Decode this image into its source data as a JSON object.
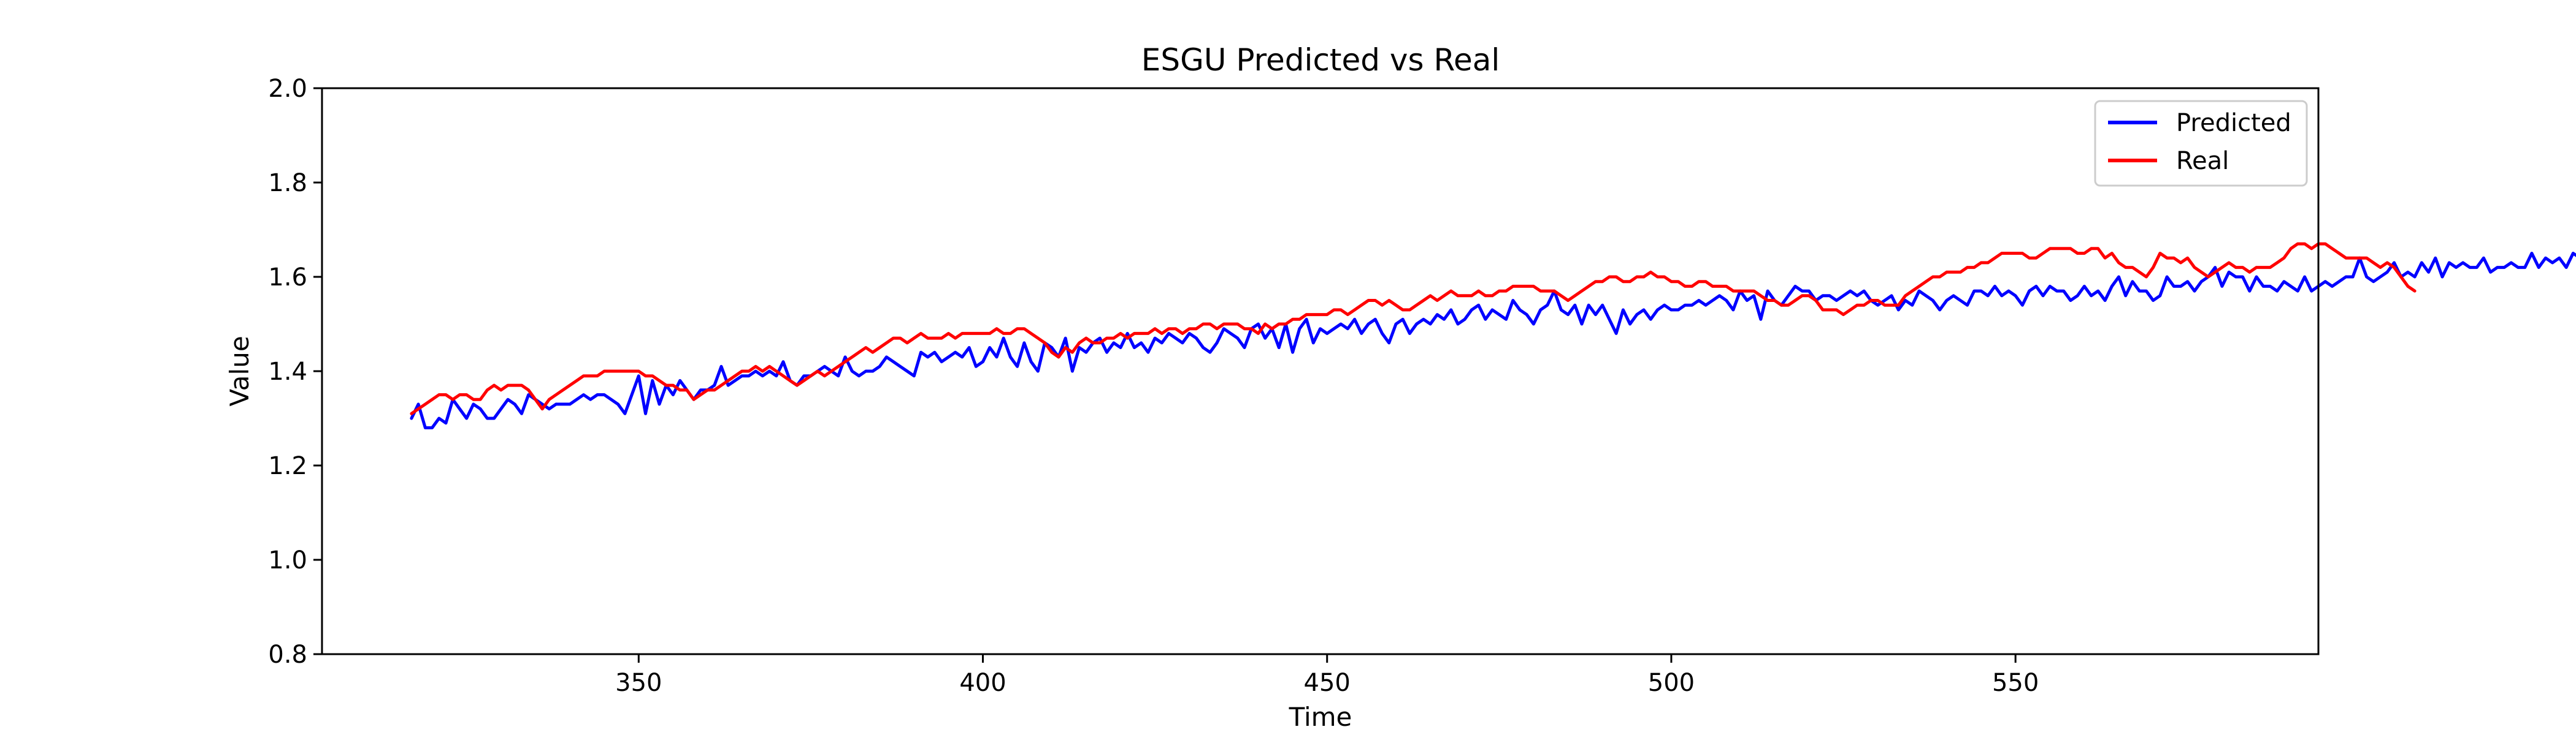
{
  "chart_data": {
    "type": "line",
    "title": "ESGU Predicted vs Real",
    "xlabel": "Time",
    "ylabel": "Value",
    "xlim": [
      304,
      594
    ],
    "ylim": [
      0.8,
      2.0
    ],
    "x_ticks": [
      350,
      400,
      450,
      500,
      550
    ],
    "y_ticks": [
      0.8,
      1.0,
      1.2,
      1.4,
      1.6,
      1.8,
      2.0
    ],
    "x_tick_labels": [
      "350",
      "400",
      "450",
      "500",
      "550"
    ],
    "y_tick_labels": [
      "0.8",
      "1.0",
      "1.2",
      "1.4",
      "1.6",
      "1.8",
      "2.0"
    ],
    "grid": false,
    "legend_position": "top-right",
    "x_start": 317,
    "x_step": 1,
    "series": [
      {
        "name": "Predicted",
        "color": "#0000ff",
        "values": [
          1.3,
          1.33,
          1.28,
          1.28,
          1.3,
          1.29,
          1.34,
          1.32,
          1.3,
          1.33,
          1.32,
          1.3,
          1.3,
          1.32,
          1.34,
          1.33,
          1.31,
          1.35,
          1.34,
          1.33,
          1.32,
          1.33,
          1.33,
          1.33,
          1.34,
          1.35,
          1.34,
          1.35,
          1.35,
          1.34,
          1.33,
          1.31,
          1.35,
          1.39,
          1.31,
          1.38,
          1.33,
          1.37,
          1.35,
          1.38,
          1.36,
          1.34,
          1.36,
          1.36,
          1.37,
          1.41,
          1.37,
          1.38,
          1.39,
          1.39,
          1.4,
          1.39,
          1.4,
          1.39,
          1.42,
          1.38,
          1.37,
          1.39,
          1.39,
          1.4,
          1.41,
          1.4,
          1.39,
          1.43,
          1.4,
          1.39,
          1.4,
          1.4,
          1.41,
          1.43,
          1.42,
          1.41,
          1.4,
          1.39,
          1.44,
          1.43,
          1.44,
          1.42,
          1.43,
          1.44,
          1.43,
          1.45,
          1.41,
          1.42,
          1.45,
          1.43,
          1.47,
          1.43,
          1.41,
          1.46,
          1.42,
          1.4,
          1.46,
          1.45,
          1.43,
          1.47,
          1.4,
          1.45,
          1.44,
          1.46,
          1.47,
          1.44,
          1.46,
          1.45,
          1.48,
          1.45,
          1.46,
          1.44,
          1.47,
          1.46,
          1.48,
          1.47,
          1.46,
          1.48,
          1.47,
          1.45,
          1.44,
          1.46,
          1.49,
          1.48,
          1.47,
          1.45,
          1.49,
          1.5,
          1.47,
          1.49,
          1.45,
          1.5,
          1.44,
          1.49,
          1.51,
          1.46,
          1.49,
          1.48,
          1.49,
          1.5,
          1.49,
          1.51,
          1.48,
          1.5,
          1.51,
          1.48,
          1.46,
          1.5,
          1.51,
          1.48,
          1.5,
          1.51,
          1.5,
          1.52,
          1.51,
          1.53,
          1.5,
          1.51,
          1.53,
          1.54,
          1.51,
          1.53,
          1.52,
          1.51,
          1.55,
          1.53,
          1.52,
          1.5,
          1.53,
          1.54,
          1.57,
          1.53,
          1.52,
          1.54,
          1.5,
          1.54,
          1.52,
          1.54,
          1.51,
          1.48,
          1.53,
          1.5,
          1.52,
          1.53,
          1.51,
          1.53,
          1.54,
          1.53,
          1.53,
          1.54,
          1.54,
          1.55,
          1.54,
          1.55,
          1.56,
          1.55,
          1.53,
          1.57,
          1.55,
          1.56,
          1.51,
          1.57,
          1.55,
          1.54,
          1.56,
          1.58,
          1.57,
          1.57,
          1.55,
          1.56,
          1.56,
          1.55,
          1.56,
          1.57,
          1.56,
          1.57,
          1.55,
          1.54,
          1.55,
          1.56,
          1.53,
          1.55,
          1.54,
          1.57,
          1.56,
          1.55,
          1.53,
          1.55,
          1.56,
          1.55,
          1.54,
          1.57,
          1.57,
          1.56,
          1.58,
          1.56,
          1.57,
          1.56,
          1.54,
          1.57,
          1.58,
          1.56,
          1.58,
          1.57,
          1.57,
          1.55,
          1.56,
          1.58,
          1.56,
          1.57,
          1.55,
          1.58,
          1.6,
          1.56,
          1.59,
          1.57,
          1.57,
          1.55,
          1.56,
          1.6,
          1.58,
          1.58,
          1.59,
          1.57,
          1.59,
          1.6,
          1.62,
          1.58,
          1.61,
          1.6,
          1.6,
          1.57,
          1.6,
          1.58,
          1.58,
          1.57,
          1.59,
          1.58,
          1.57,
          1.6,
          1.57,
          1.58,
          1.59,
          1.58,
          1.59,
          1.6,
          1.6,
          1.64,
          1.6,
          1.59,
          1.6,
          1.61,
          1.63,
          1.6,
          1.61,
          1.6,
          1.63,
          1.61,
          1.64,
          1.6,
          1.63,
          1.62,
          1.63,
          1.62,
          1.62,
          1.64,
          1.61,
          1.62,
          1.62,
          1.63,
          1.62,
          1.62,
          1.65,
          1.62,
          1.64,
          1.63,
          1.64,
          1.62,
          1.65,
          1.64,
          1.63,
          1.64,
          1.62,
          1.63,
          1.63,
          1.64,
          1.65,
          1.63,
          1.64,
          1.66
        ]
      },
      {
        "name": "Real",
        "color": "#ff0000",
        "values": [
          1.31,
          1.32,
          1.33,
          1.34,
          1.35,
          1.35,
          1.34,
          1.35,
          1.35,
          1.34,
          1.34,
          1.36,
          1.37,
          1.36,
          1.37,
          1.37,
          1.37,
          1.36,
          1.34,
          1.32,
          1.34,
          1.35,
          1.36,
          1.37,
          1.38,
          1.39,
          1.39,
          1.39,
          1.4,
          1.4,
          1.4,
          1.4,
          1.4,
          1.4,
          1.39,
          1.39,
          1.38,
          1.37,
          1.37,
          1.36,
          1.36,
          1.34,
          1.35,
          1.36,
          1.36,
          1.37,
          1.38,
          1.39,
          1.4,
          1.4,
          1.41,
          1.4,
          1.41,
          1.4,
          1.39,
          1.38,
          1.37,
          1.38,
          1.39,
          1.4,
          1.39,
          1.4,
          1.41,
          1.42,
          1.43,
          1.44,
          1.45,
          1.44,
          1.45,
          1.46,
          1.47,
          1.47,
          1.46,
          1.47,
          1.48,
          1.47,
          1.47,
          1.47,
          1.48,
          1.47,
          1.48,
          1.48,
          1.48,
          1.48,
          1.48,
          1.49,
          1.48,
          1.48,
          1.49,
          1.49,
          1.48,
          1.47,
          1.46,
          1.44,
          1.43,
          1.45,
          1.44,
          1.46,
          1.47,
          1.46,
          1.46,
          1.47,
          1.47,
          1.48,
          1.47,
          1.48,
          1.48,
          1.48,
          1.49,
          1.48,
          1.49,
          1.49,
          1.48,
          1.49,
          1.49,
          1.5,
          1.5,
          1.49,
          1.5,
          1.5,
          1.5,
          1.49,
          1.49,
          1.48,
          1.5,
          1.49,
          1.5,
          1.5,
          1.51,
          1.51,
          1.52,
          1.52,
          1.52,
          1.52,
          1.53,
          1.53,
          1.52,
          1.53,
          1.54,
          1.55,
          1.55,
          1.54,
          1.55,
          1.54,
          1.53,
          1.53,
          1.54,
          1.55,
          1.56,
          1.55,
          1.56,
          1.57,
          1.56,
          1.56,
          1.56,
          1.57,
          1.56,
          1.56,
          1.57,
          1.57,
          1.58,
          1.58,
          1.58,
          1.58,
          1.57,
          1.57,
          1.57,
          1.56,
          1.55,
          1.56,
          1.57,
          1.58,
          1.59,
          1.59,
          1.6,
          1.6,
          1.59,
          1.59,
          1.6,
          1.6,
          1.61,
          1.6,
          1.6,
          1.59,
          1.59,
          1.58,
          1.58,
          1.59,
          1.59,
          1.58,
          1.58,
          1.58,
          1.57,
          1.57,
          1.57,
          1.57,
          1.56,
          1.55,
          1.55,
          1.54,
          1.54,
          1.55,
          1.56,
          1.56,
          1.55,
          1.53,
          1.53,
          1.53,
          1.52,
          1.53,
          1.54,
          1.54,
          1.55,
          1.55,
          1.54,
          1.54,
          1.54,
          1.56,
          1.57,
          1.58,
          1.59,
          1.6,
          1.6,
          1.61,
          1.61,
          1.61,
          1.62,
          1.62,
          1.63,
          1.63,
          1.64,
          1.65,
          1.65,
          1.65,
          1.65,
          1.64,
          1.64,
          1.65,
          1.66,
          1.66,
          1.66,
          1.66,
          1.65,
          1.65,
          1.66,
          1.66,
          1.64,
          1.65,
          1.63,
          1.62,
          1.62,
          1.61,
          1.6,
          1.62,
          1.65,
          1.64,
          1.64,
          1.63,
          1.64,
          1.62,
          1.61,
          1.6,
          1.61,
          1.62,
          1.63,
          1.62,
          1.62,
          1.61,
          1.62,
          1.62,
          1.62,
          1.63,
          1.64,
          1.66,
          1.67,
          1.67,
          1.66,
          1.67,
          1.67,
          1.66,
          1.65,
          1.64,
          1.64,
          1.64,
          1.64,
          1.63,
          1.62,
          1.63,
          1.62,
          1.6,
          1.58,
          1.57
        ]
      }
    ]
  }
}
